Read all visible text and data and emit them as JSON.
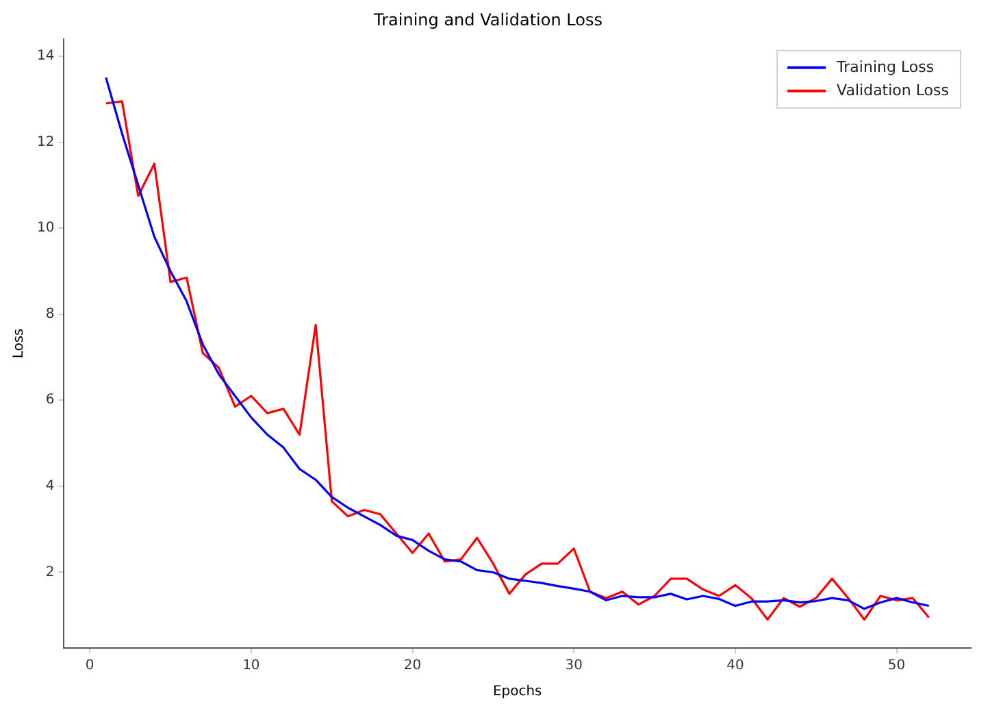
{
  "chart_data": {
    "type": "line",
    "title": "Training and Validation Loss",
    "xlabel": "Epochs",
    "ylabel": "Loss",
    "x": [
      1,
      2,
      3,
      4,
      5,
      6,
      7,
      8,
      9,
      10,
      11,
      12,
      13,
      14,
      15,
      16,
      17,
      18,
      19,
      20,
      21,
      22,
      23,
      24,
      25,
      26,
      27,
      28,
      29,
      30,
      31,
      32,
      33,
      34,
      35,
      36,
      37,
      38,
      39,
      40,
      41,
      42,
      43,
      44,
      45,
      46,
      47,
      48,
      49,
      50,
      51,
      52
    ],
    "series": [
      {
        "name": "Training Loss",
        "color": "#0000ff",
        "values": [
          13.5,
          12.2,
          11.0,
          9.8,
          9.0,
          8.3,
          7.3,
          6.6,
          6.1,
          5.6,
          5.2,
          4.9,
          4.4,
          4.15,
          3.75,
          3.5,
          3.3,
          3.1,
          2.85,
          2.75,
          2.5,
          2.3,
          2.25,
          2.05,
          2.0,
          1.85,
          1.8,
          1.75,
          1.68,
          1.62,
          1.55,
          1.35,
          1.45,
          1.42,
          1.42,
          1.5,
          1.37,
          1.45,
          1.38,
          1.22,
          1.32,
          1.32,
          1.35,
          1.3,
          1.33,
          1.4,
          1.35,
          1.15,
          1.3,
          1.4,
          1.3,
          1.22
        ]
      },
      {
        "name": "Validation Loss",
        "color": "#ff0000",
        "values": [
          12.9,
          12.95,
          10.75,
          11.5,
          8.75,
          8.85,
          7.1,
          6.75,
          5.85,
          6.1,
          5.7,
          5.8,
          5.2,
          7.75,
          3.65,
          3.3,
          3.45,
          3.35,
          2.9,
          2.45,
          2.9,
          2.25,
          2.3,
          2.8,
          2.2,
          1.5,
          1.95,
          2.2,
          2.2,
          2.55,
          1.55,
          1.4,
          1.55,
          1.25,
          1.45,
          1.85,
          1.85,
          1.6,
          1.45,
          1.7,
          1.4,
          0.9,
          1.4,
          1.2,
          1.4,
          1.85,
          1.4,
          0.9,
          1.45,
          1.35,
          1.4,
          0.95
        ]
      }
    ],
    "xlim": [
      -1.6,
      54.6
    ],
    "ylim": [
      0.24,
      14.4
    ],
    "xticks": [
      0,
      10,
      20,
      30,
      40,
      50
    ],
    "yticks": [
      2,
      4,
      6,
      8,
      10,
      12,
      14
    ],
    "grid": false,
    "legend": "top right",
    "marker": "none",
    "line_style": "solid"
  }
}
